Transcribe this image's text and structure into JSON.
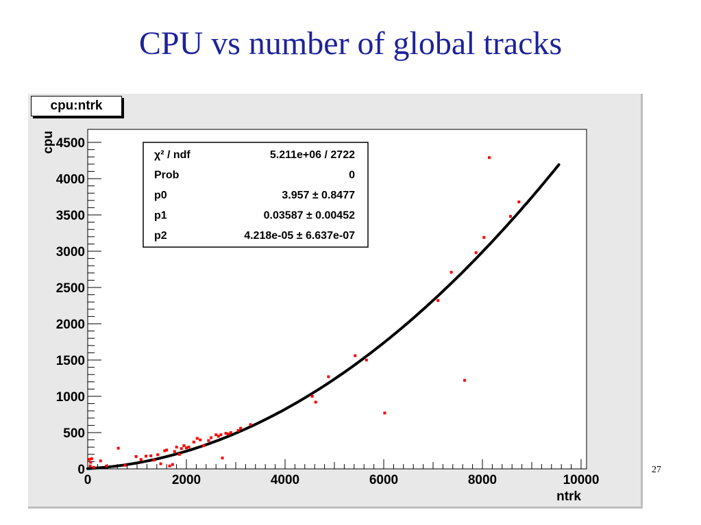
{
  "slide": {
    "title": "CPU vs number of global tracks",
    "page_number": "27"
  },
  "histogram_title": "cpu:ntrk",
  "stats_box": {
    "rows": [
      {
        "label": "χ² / ndf",
        "value": "5.211e+06 / 2722"
      },
      {
        "label": "Prob",
        "value": "0"
      },
      {
        "label": "p0",
        "value": "3.957 ± 0.8477"
      },
      {
        "label": "p1",
        "value": "0.03587 ± 0.00452"
      },
      {
        "label": "p2",
        "value": "4.218e-05 ± 6.637e-07"
      }
    ]
  },
  "chart_data": {
    "type": "scatter",
    "title": "cpu:ntrk",
    "xlabel": "ntrk",
    "ylabel": "cpu",
    "xlim": [
      0,
      10000
    ],
    "ylim": [
      0,
      4500
    ],
    "x_ticks": [
      0,
      2000,
      4000,
      6000,
      8000,
      10000
    ],
    "y_ticks": [
      0,
      500,
      1000,
      1500,
      2000,
      2500,
      3000,
      3500,
      4000,
      4500
    ],
    "grid": false,
    "colors": {
      "points": "#ff0000",
      "fit": "#000000"
    },
    "fit": {
      "function": "pol2",
      "p0": 3.957,
      "p1": 0.03587,
      "p2": 4.218e-05,
      "x_range": [
        0,
        9550
      ]
    },
    "points": [
      {
        "x": 30,
        "y": 130
      },
      {
        "x": 60,
        "y": 90
      },
      {
        "x": 80,
        "y": 140
      },
      {
        "x": 50,
        "y": 40
      },
      {
        "x": 120,
        "y": 20
      },
      {
        "x": 260,
        "y": 110
      },
      {
        "x": 380,
        "y": 40
      },
      {
        "x": 620,
        "y": 285
      },
      {
        "x": 760,
        "y": 50
      },
      {
        "x": 980,
        "y": 170
      },
      {
        "x": 1080,
        "y": 130
      },
      {
        "x": 1180,
        "y": 175
      },
      {
        "x": 1280,
        "y": 180
      },
      {
        "x": 1340,
        "y": 120
      },
      {
        "x": 1420,
        "y": 195
      },
      {
        "x": 1480,
        "y": 70
      },
      {
        "x": 1560,
        "y": 250
      },
      {
        "x": 1600,
        "y": 260
      },
      {
        "x": 1660,
        "y": 40
      },
      {
        "x": 1720,
        "y": 60
      },
      {
        "x": 1760,
        "y": 240
      },
      {
        "x": 1800,
        "y": 300
      },
      {
        "x": 1860,
        "y": 200
      },
      {
        "x": 1900,
        "y": 280
      },
      {
        "x": 1950,
        "y": 320
      },
      {
        "x": 2000,
        "y": 290
      },
      {
        "x": 2050,
        "y": 300
      },
      {
        "x": 2150,
        "y": 370
      },
      {
        "x": 2220,
        "y": 420
      },
      {
        "x": 2280,
        "y": 400
      },
      {
        "x": 2350,
        "y": 320
      },
      {
        "x": 2450,
        "y": 390
      },
      {
        "x": 2500,
        "y": 430
      },
      {
        "x": 2600,
        "y": 470
      },
      {
        "x": 2650,
        "y": 450
      },
      {
        "x": 2700,
        "y": 470
      },
      {
        "x": 2730,
        "y": 150
      },
      {
        "x": 2800,
        "y": 490
      },
      {
        "x": 2850,
        "y": 480
      },
      {
        "x": 2900,
        "y": 500
      },
      {
        "x": 3050,
        "y": 530
      },
      {
        "x": 3100,
        "y": 560
      },
      {
        "x": 3300,
        "y": 610
      },
      {
        "x": 4550,
        "y": 1000
      },
      {
        "x": 4620,
        "y": 920
      },
      {
        "x": 4880,
        "y": 1270
      },
      {
        "x": 5420,
        "y": 1560
      },
      {
        "x": 5650,
        "y": 1500
      },
      {
        "x": 6020,
        "y": 770
      },
      {
        "x": 7100,
        "y": 2320
      },
      {
        "x": 7370,
        "y": 2710
      },
      {
        "x": 7640,
        "y": 1220
      },
      {
        "x": 7870,
        "y": 2980
      },
      {
        "x": 8030,
        "y": 3190
      },
      {
        "x": 8140,
        "y": 4290
      },
      {
        "x": 8570,
        "y": 3480
      },
      {
        "x": 8740,
        "y": 3680
      }
    ]
  }
}
